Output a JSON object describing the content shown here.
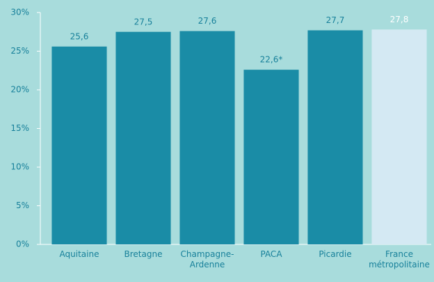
{
  "chart_data": {
    "type": "bar",
    "categories": [
      "Aquitaine",
      "Bretagne",
      "Champagne-Ardenne",
      "PACA",
      "Picardie",
      "France métropolitaine"
    ],
    "values": [
      25.6,
      27.5,
      27.6,
      22.6,
      27.7,
      27.8
    ],
    "value_labels": [
      "25,6",
      "27,5",
      "27,6",
      "22,6*",
      "27,7",
      "27,8"
    ],
    "colors": [
      "#1a8ca6",
      "#1a8ca6",
      "#1a8ca6",
      "#1a8ca6",
      "#1a8ca6",
      "#d4e9f3"
    ],
    "label_colors": [
      "#17809a",
      "#17809a",
      "#17809a",
      "#17809a",
      "#17809a",
      "#ffffff"
    ],
    "ylim": [
      0,
      30
    ],
    "yticks": [
      {
        "value": 0,
        "label": "0%"
      },
      {
        "value": 5,
        "label": "5%"
      },
      {
        "value": 10,
        "label": "10%"
      },
      {
        "value": 15,
        "label": "15%"
      },
      {
        "value": 20,
        "label": "20%"
      },
      {
        "value": 25,
        "label": "25%"
      },
      {
        "value": 30,
        "label": "30%"
      }
    ],
    "grid": false
  }
}
